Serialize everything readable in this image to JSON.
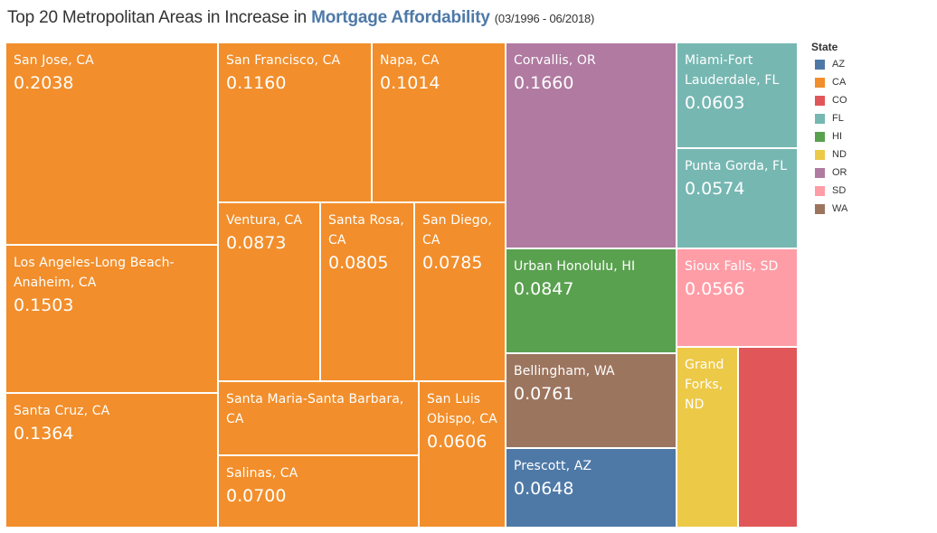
{
  "title": {
    "prefix": "Top 20 Metropolitan Areas in Increase in ",
    "highlight": "Mortgage Affordability",
    "range": "(03/1996 - 06/2018)"
  },
  "legend": {
    "title": "State",
    "items": [
      {
        "label": "AZ",
        "color": "#4e79a7"
      },
      {
        "label": "CA",
        "color": "#f28e2b"
      },
      {
        "label": "CO",
        "color": "#e15759"
      },
      {
        "label": "FL",
        "color": "#76b7b2"
      },
      {
        "label": "HI",
        "color": "#59a14f"
      },
      {
        "label": "ND",
        "color": "#edc948"
      },
      {
        "label": "OR",
        "color": "#b07aa1"
      },
      {
        "label": "SD",
        "color": "#ff9da7"
      },
      {
        "label": "WA",
        "color": "#9c755f"
      }
    ]
  },
  "chart_data": {
    "type": "treemap",
    "title": "Top 20 Metropolitan Areas in Increase in Mortgage Affordability (03/1996 - 06/2018)",
    "legend_title": "State",
    "legend_position": "right",
    "items": [
      {
        "name": "San Jose, CA",
        "value": "0.2038",
        "state": "CA"
      },
      {
        "name": "Los Angeles-Long Beach-Anaheim, CA",
        "value": "0.1503",
        "state": "CA"
      },
      {
        "name": "Santa Cruz, CA",
        "value": "0.1364",
        "state": "CA"
      },
      {
        "name": "San Francisco, CA",
        "value": "0.1160",
        "state": "CA"
      },
      {
        "name": "Napa, CA",
        "value": "0.1014",
        "state": "CA"
      },
      {
        "name": "Ventura, CA",
        "value": "0.0873",
        "state": "CA"
      },
      {
        "name": "Santa Rosa, CA",
        "value": "0.0805",
        "state": "CA"
      },
      {
        "name": "San Diego, CA",
        "value": "0.0785",
        "state": "CA"
      },
      {
        "name": "Santa Maria-Santa Barbara, CA",
        "value": "",
        "state": "CA"
      },
      {
        "name": "Salinas, CA",
        "value": "0.0700",
        "state": "CA"
      },
      {
        "name": "San Luis Obispo, CA",
        "value": "0.0606",
        "state": "CA"
      },
      {
        "name": "Corvallis, OR",
        "value": "0.1660",
        "state": "OR"
      },
      {
        "name": "Urban Honolulu, HI",
        "value": "0.0847",
        "state": "HI"
      },
      {
        "name": "Bellingham, WA",
        "value": "0.0761",
        "state": "WA"
      },
      {
        "name": "Prescott, AZ",
        "value": "0.0648",
        "state": "AZ"
      },
      {
        "name": "Miami-Fort Lauderdale, FL",
        "value": "0.0603",
        "state": "FL"
      },
      {
        "name": "Punta Gorda, FL",
        "value": "0.0574",
        "state": "FL"
      },
      {
        "name": "Sioux Falls, SD",
        "value": "0.0566",
        "state": "SD"
      },
      {
        "name": "Grand Forks, ND",
        "value": "",
        "state": "ND"
      },
      {
        "name": "",
        "value": "",
        "state": "CO"
      }
    ]
  }
}
